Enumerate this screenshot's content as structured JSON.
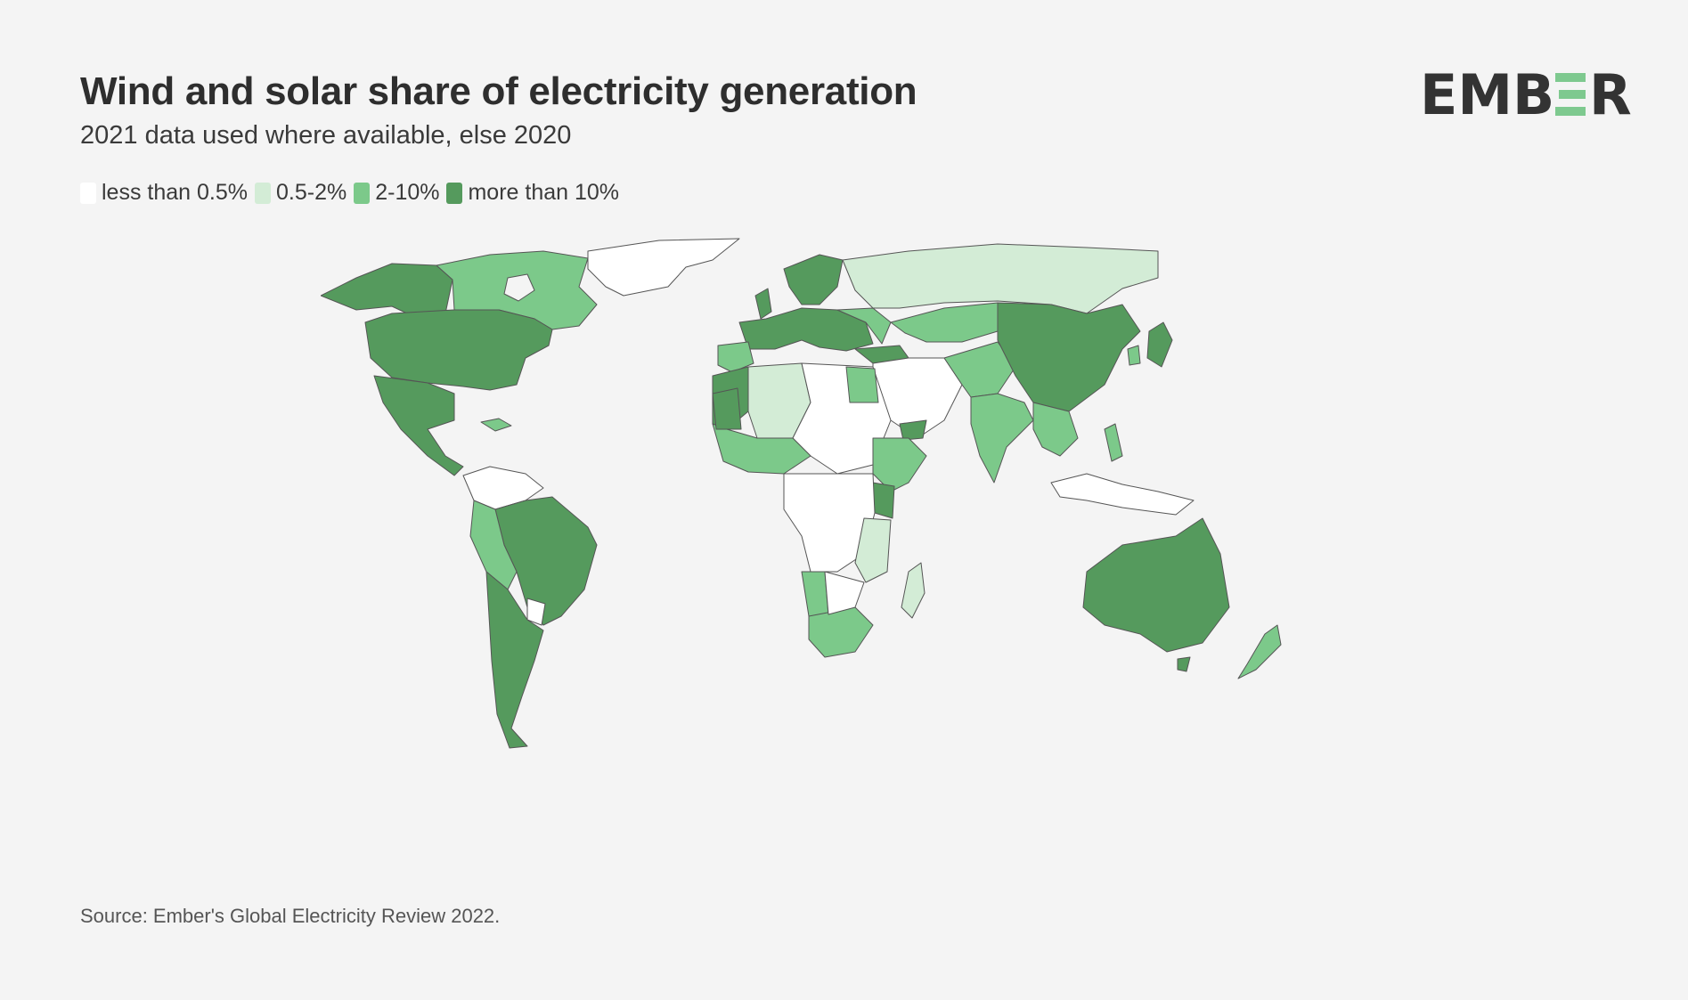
{
  "header": {
    "title": "Wind and solar share of electricity generation",
    "subtitle": "2021 data used where available, else 2020"
  },
  "logo": {
    "text": "EMBER",
    "accent_color": "#7ec98f",
    "text_color": "#333333"
  },
  "legend": {
    "items": [
      {
        "label": "less than 0.5%",
        "color": "#ffffff"
      },
      {
        "label": "0.5-2%",
        "color": "#d3ecd6"
      },
      {
        "label": "2-10%",
        "color": "#7cc98a"
      },
      {
        "label": "more than 10%",
        "color": "#559a5d"
      }
    ]
  },
  "map": {
    "border_color": "#555555",
    "ocean_color": "#f4f4f4"
  },
  "footer": {
    "source": "Source: Ember's Global Electricity Review 2022."
  }
}
